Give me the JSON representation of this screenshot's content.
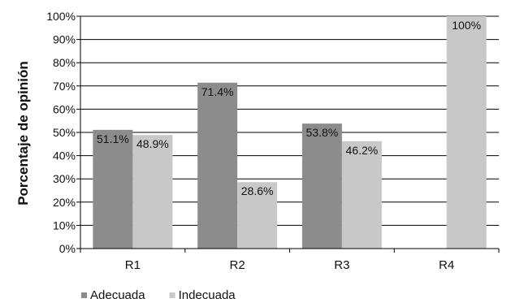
{
  "chart_data": {
    "type": "bar",
    "categories": [
      "R1",
      "R2",
      "R3",
      "R4"
    ],
    "series": [
      {
        "name": "Adecuada",
        "values": [
          51.1,
          71.4,
          53.8,
          0
        ],
        "labels": [
          "51.1%",
          "71.4%",
          "53.8%",
          ""
        ]
      },
      {
        "name": "Indecuada",
        "values": [
          48.9,
          28.6,
          46.2,
          100
        ],
        "labels": [
          "48.9%",
          "28.6%",
          "46.2%",
          "100%"
        ]
      }
    ],
    "ylabel": "Porcentaje de opinión",
    "xlabel": "",
    "ylim": [
      0,
      100
    ],
    "yticks": [
      "0%",
      "10%",
      "20%",
      "30%",
      "40%",
      "50%",
      "60%",
      "70%",
      "80%",
      "90%",
      "100%"
    ],
    "grid": true,
    "legend_position": "bottom-left",
    "colors": {
      "Adecuada": "#8c8c8c",
      "Indecuada": "#c8c8c8",
      "grid": "#000000"
    }
  }
}
